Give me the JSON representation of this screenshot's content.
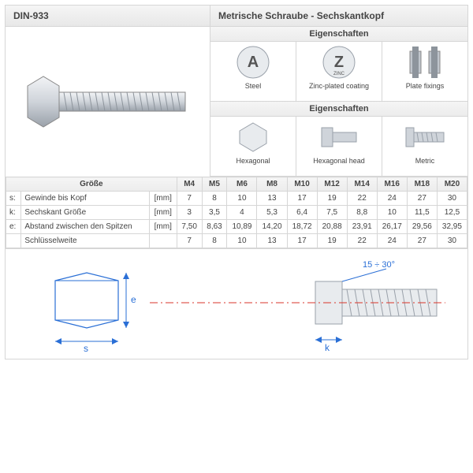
{
  "header": {
    "din": "DIN-933",
    "title": "Metrische Schraube - Sechskantkopf"
  },
  "props_heading": "Eigenschaften",
  "props1": [
    {
      "name": "steel-icon",
      "glyph": "A",
      "label": "Steel"
    },
    {
      "name": "zinc-icon",
      "glyph": "Z",
      "sub": "ZINC",
      "label": "Zinc-plated coating"
    },
    {
      "name": "fixing-icon",
      "glyph": "⫿⫿",
      "label": "Plate fixings"
    }
  ],
  "props2": [
    {
      "name": "hex-icon",
      "label": "Hexagonal"
    },
    {
      "name": "hexhead-icon",
      "label": "Hexagonal head"
    },
    {
      "name": "metric-icon",
      "label": "Metric"
    }
  ],
  "table": {
    "size_header": "Größe",
    "unit": "[mm]",
    "columns": [
      "M4",
      "M5",
      "M6",
      "M8",
      "M10",
      "M12",
      "M14",
      "M16",
      "M18",
      "M20"
    ],
    "rows": [
      {
        "key": "s:",
        "label": "Gewinde bis Kopf",
        "unit": "[mm]",
        "values": [
          "7",
          "8",
          "10",
          "13",
          "17",
          "19",
          "22",
          "24",
          "27",
          "30"
        ]
      },
      {
        "key": "k:",
        "label": "Sechskant Größe",
        "unit": "[mm]",
        "values": [
          "3",
          "3,5",
          "4",
          "5,3",
          "6,4",
          "7,5",
          "8,8",
          "10",
          "11,5",
          "12,5"
        ]
      },
      {
        "key": "e:",
        "label": "Abstand zwischen den Spitzen",
        "unit": "[mm]",
        "values": [
          "7,50",
          "8,63",
          "10,89",
          "14,20",
          "18,72",
          "20,88",
          "23,91",
          "26,17",
          "29,56",
          "32,95"
        ]
      },
      {
        "key": "",
        "label": "Schlüsselweite",
        "unit": "",
        "values": [
          "7",
          "8",
          "10",
          "13",
          "17",
          "19",
          "22",
          "24",
          "27",
          "30"
        ]
      }
    ]
  },
  "diagram": {
    "dims": [
      "s",
      "e",
      "k"
    ],
    "angle": "15 ÷ 30°",
    "colors": {
      "dim": "#2a6fd6",
      "center": "#d9342b",
      "steel": "#cfd4da",
      "steel_dark": "#9aa1aa"
    }
  }
}
